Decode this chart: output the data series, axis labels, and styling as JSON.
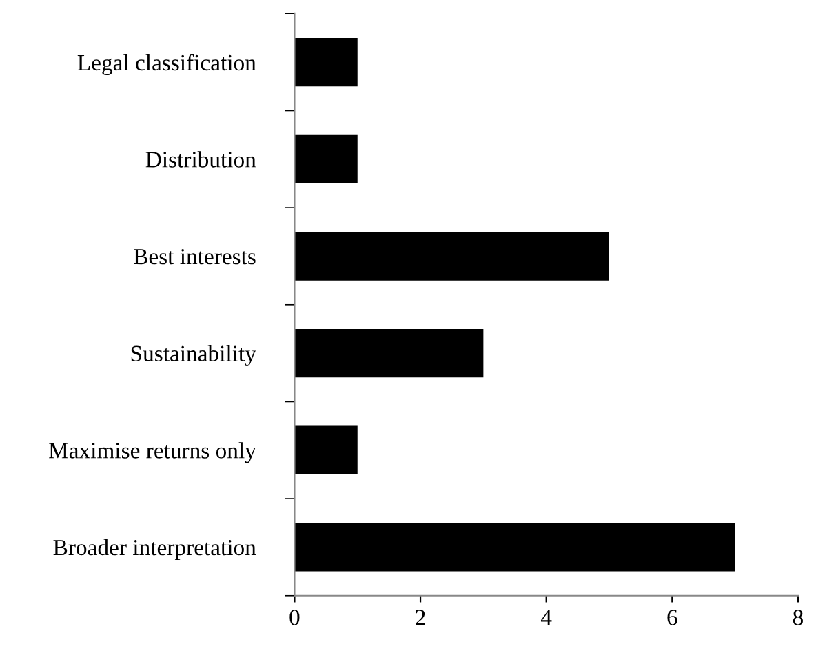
{
  "chart_data": {
    "type": "bar",
    "orientation": "horizontal",
    "categories": [
      "Legal classification",
      "Distribution",
      "Best interests",
      "Sustainability",
      "Maximise returns only",
      "Broader interpretation"
    ],
    "values": [
      1,
      1,
      5,
      3,
      1,
      7
    ],
    "color": "#000000",
    "xlim": [
      0,
      8
    ],
    "xticks": [
      0,
      2,
      4,
      6,
      8
    ],
    "grid": false,
    "legend": false
  }
}
